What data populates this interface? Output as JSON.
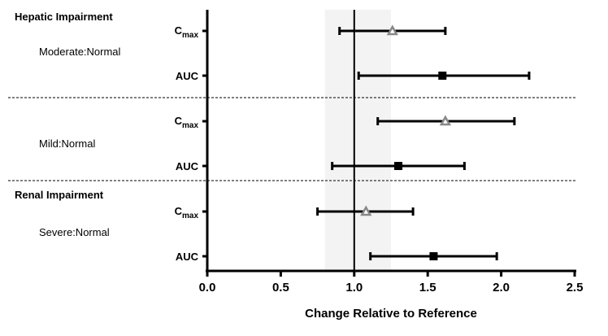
{
  "chart_data": {
    "type": "forest",
    "xlabel": "Change Relative to Reference",
    "xlim": [
      0,
      2.5
    ],
    "xticks": [
      "0.0",
      "0.5",
      "1.0",
      "1.5",
      "2.0",
      "2.5"
    ],
    "reference_line": 1.0,
    "shaded_band": [
      0.8,
      1.25
    ],
    "group_headers": [
      "Hepatic Impairment",
      "Renal Impairment"
    ],
    "subgroups": [
      "Moderate:Normal",
      "Mild:Normal",
      "Severe:Normal"
    ],
    "metric_labels": {
      "cmax_base": "C",
      "cmax_sub": "max",
      "auc": "AUC"
    },
    "rows": [
      {
        "subgroup": "Moderate:Normal",
        "metric": "Cmax",
        "estimate": 1.26,
        "lower": 0.9,
        "upper": 1.62,
        "marker": "open-triangle"
      },
      {
        "subgroup": "Moderate:Normal",
        "metric": "AUC",
        "estimate": 1.6,
        "lower": 1.03,
        "upper": 2.19,
        "marker": "square"
      },
      {
        "subgroup": "Mild:Normal",
        "metric": "Cmax",
        "estimate": 1.62,
        "lower": 1.16,
        "upper": 2.09,
        "marker": "open-triangle"
      },
      {
        "subgroup": "Mild:Normal",
        "metric": "AUC",
        "estimate": 1.3,
        "lower": 0.85,
        "upper": 1.75,
        "marker": "square"
      },
      {
        "subgroup": "Severe:Normal",
        "metric": "Cmax",
        "estimate": 1.08,
        "lower": 0.75,
        "upper": 1.4,
        "marker": "open-triangle"
      },
      {
        "subgroup": "Severe:Normal",
        "metric": "AUC",
        "estimate": 1.54,
        "lower": 1.11,
        "upper": 1.97,
        "marker": "square"
      }
    ],
    "colors": {
      "cmax_marker": "#888888",
      "auc_marker": "#000000",
      "band": "#f3f3f3"
    }
  }
}
